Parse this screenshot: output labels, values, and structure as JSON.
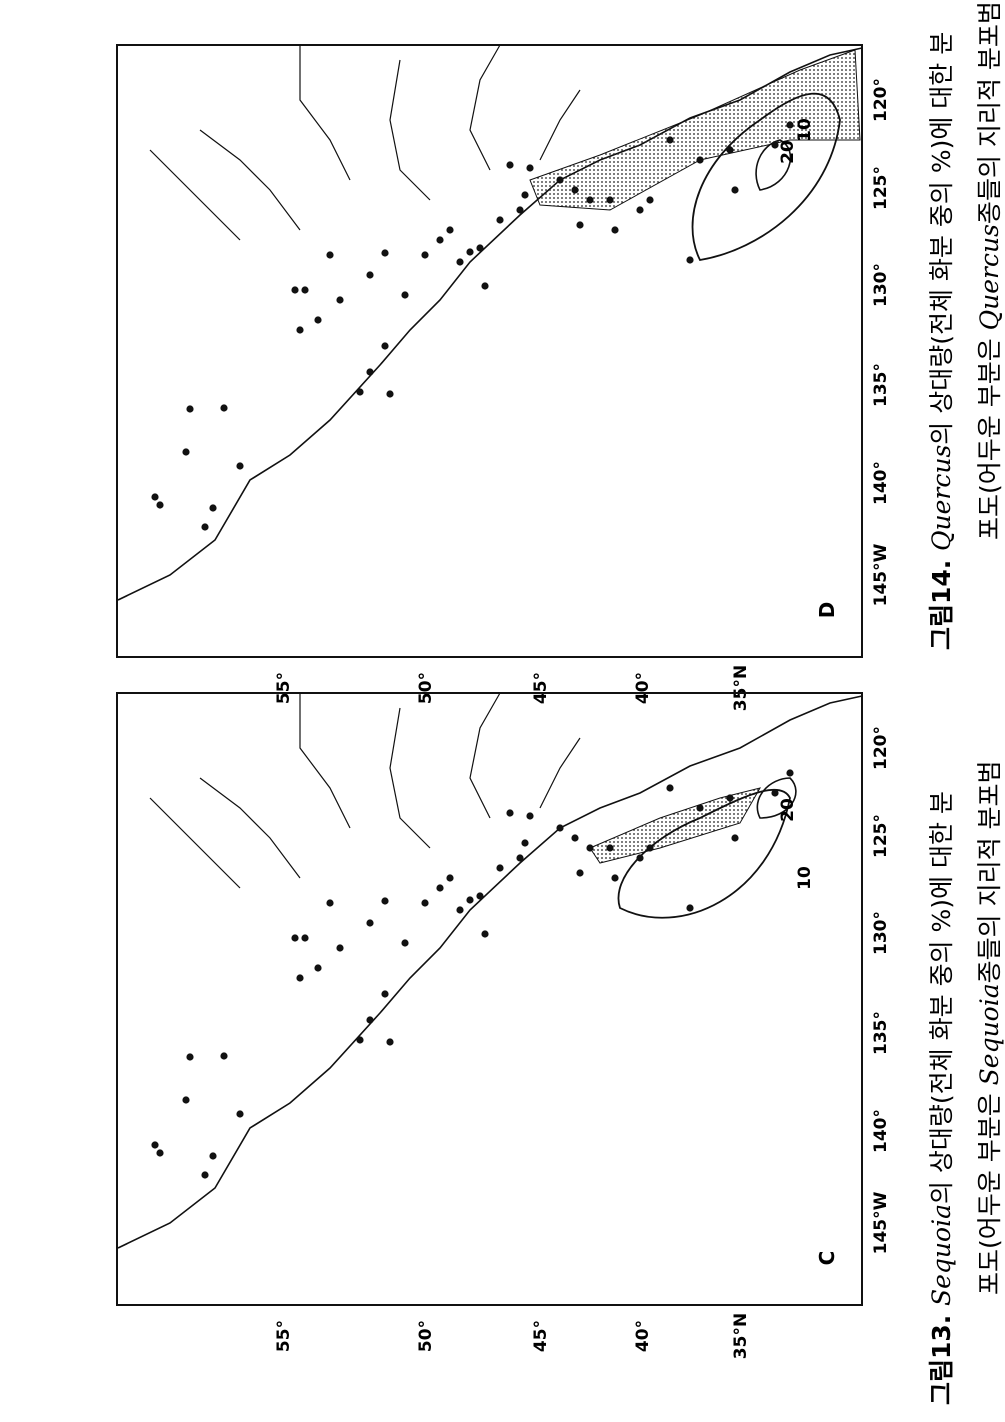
{
  "maps": [
    {
      "panel": "D",
      "lat_labels": [
        "55°",
        "50°",
        "45°",
        "40°",
        "35°N"
      ],
      "lon_labels": [
        "145°W",
        "140°",
        "135°",
        "130°",
        "125°",
        "120°"
      ],
      "contour_labels": [
        "10",
        "20"
      ]
    },
    {
      "panel": "C",
      "lat_labels": [
        "55°",
        "50°",
        "45°",
        "40°",
        "35°N"
      ],
      "lon_labels": [
        "145°W",
        "140°",
        "135°",
        "130°",
        "125°",
        "120°"
      ],
      "contour_labels": [
        "10",
        "20"
      ]
    }
  ],
  "captions": [
    {
      "number": "그림13. ",
      "genus": "Sequoia",
      "line1_rest": "의 상대량(전체 화분 중의 %)에 대한 분",
      "line2_start": "포도(어두운 부분은 ",
      "line2_genus": "Sequoia",
      "line2_rest": "종들의 지리적 분포범"
    },
    {
      "number": "그림14. ",
      "genus": "Quercus",
      "line1_rest": "의 상대량(전체 화분 중의 %)에 대한 분",
      "line2_start": "포도(어두운 부분은 ",
      "line2_genus": "Quercus",
      "line2_rest": "종들의 지리적 분포범"
    }
  ]
}
